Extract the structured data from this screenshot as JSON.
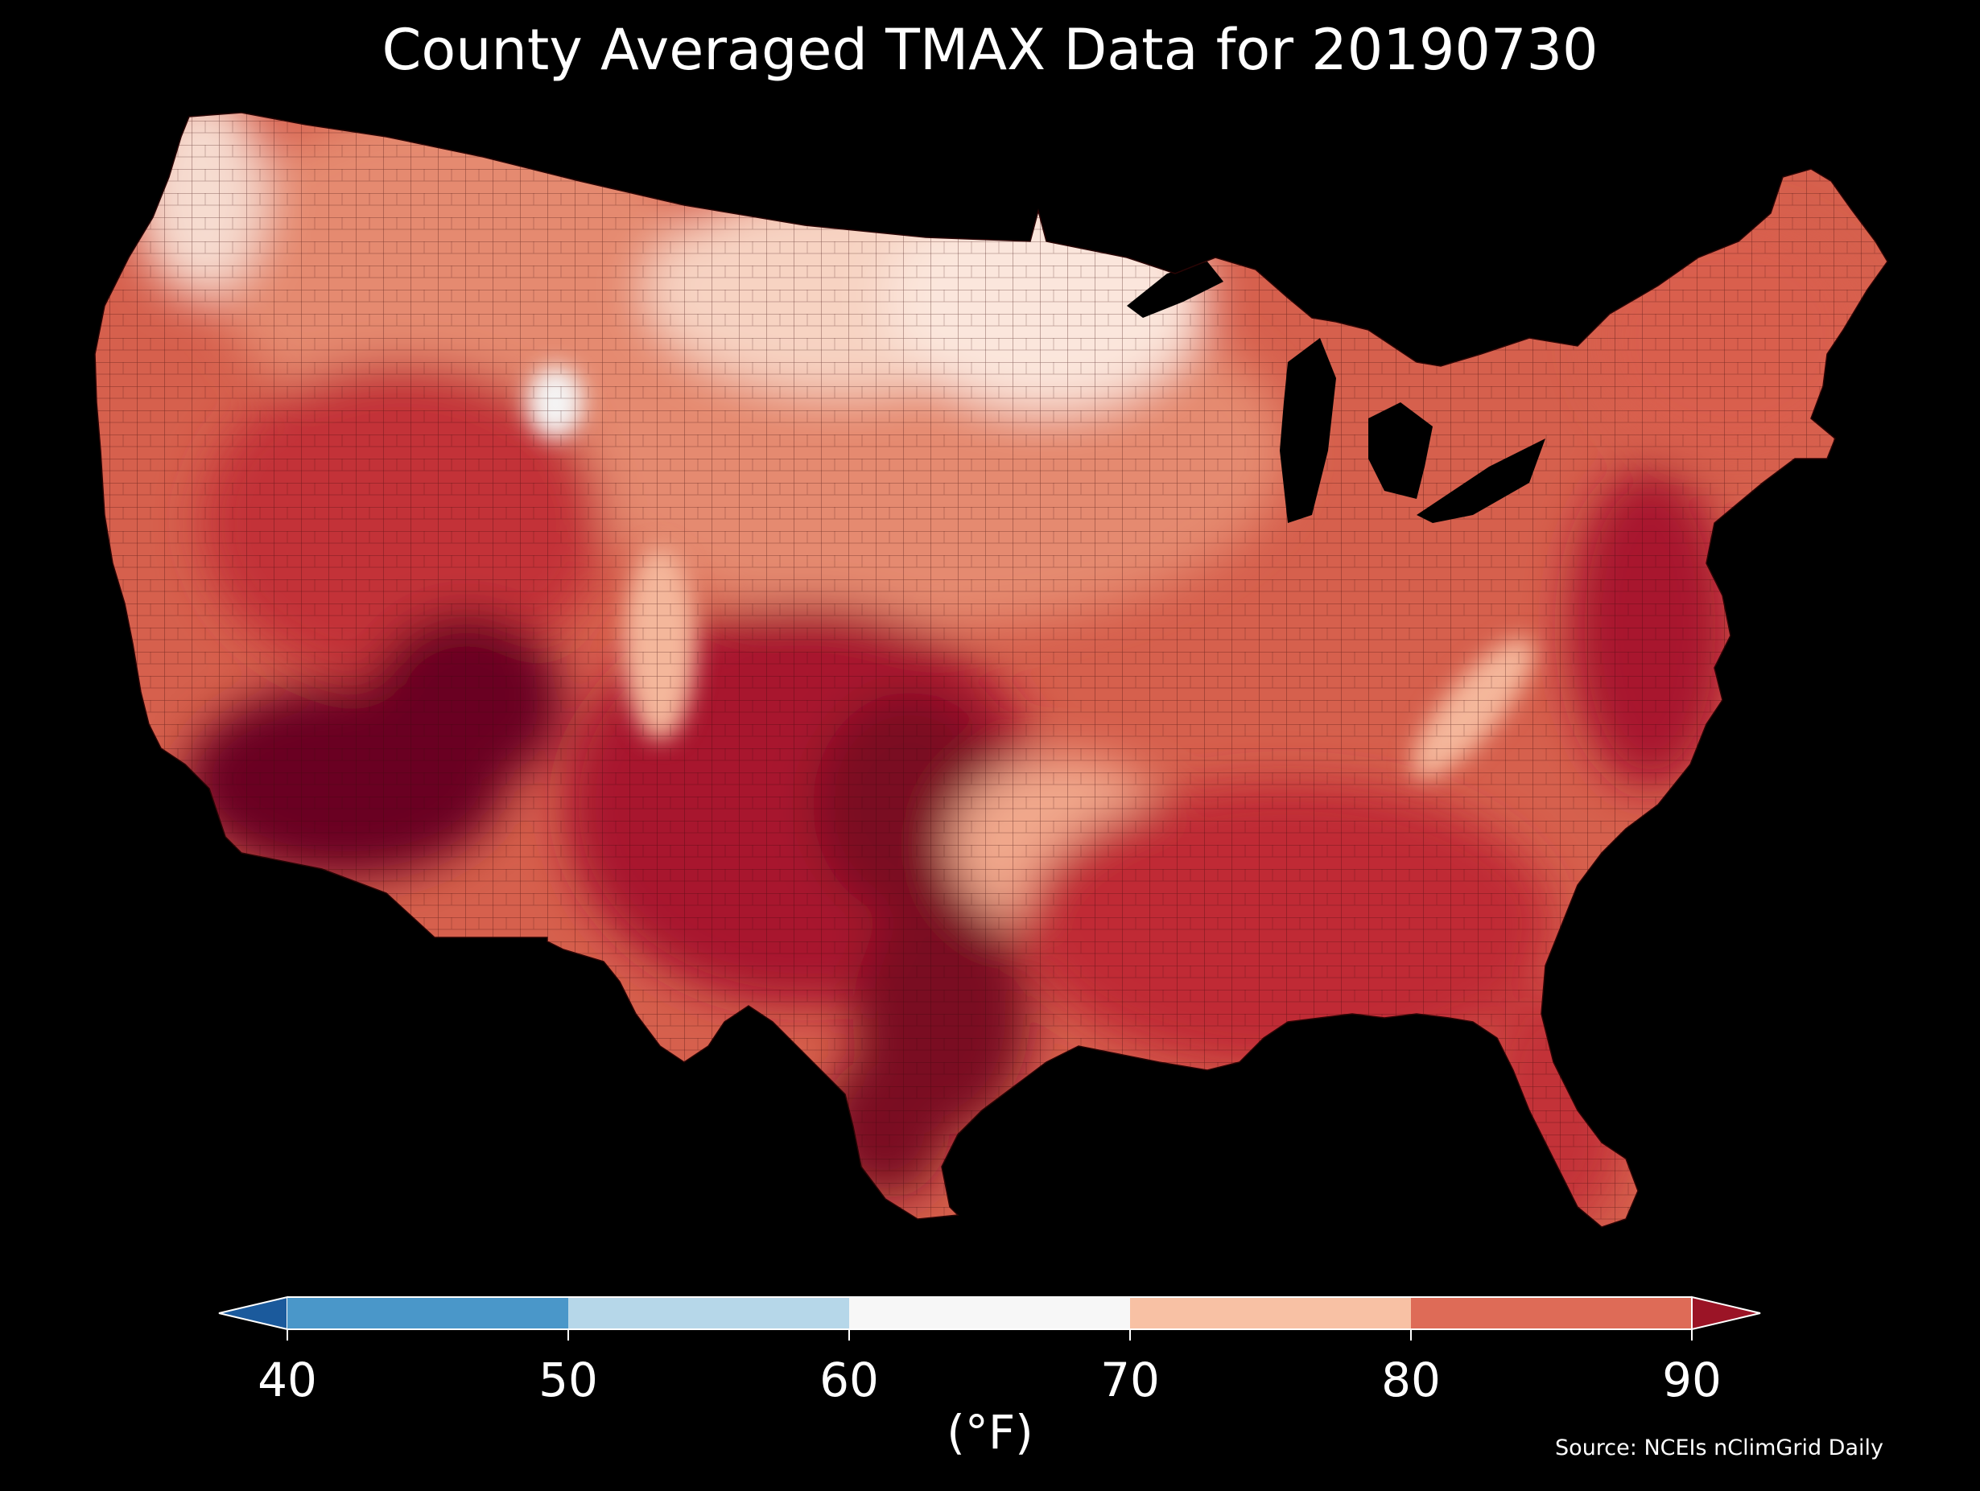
{
  "title": "County Averaged TMAX Data for 20190730",
  "colorbar": {
    "units_label": "(°F)",
    "extend_low_color": "#1b5a9c",
    "extend_high_color": "#9b1426",
    "segments": [
      {
        "from": 40,
        "to": 50,
        "color": "#4a97c9"
      },
      {
        "from": 50,
        "to": 60,
        "color": "#b6d7e9"
      },
      {
        "from": 60,
        "to": 70,
        "color": "#f7f7f7"
      },
      {
        "from": 70,
        "to": 80,
        "color": "#f8c1a4"
      },
      {
        "from": 80,
        "to": 90,
        "color": "#de6b57"
      }
    ],
    "ticks": [
      "40",
      "50",
      "60",
      "70",
      "80",
      "90"
    ]
  },
  "source": "Source: NCEIs nClimGrid Daily",
  "map": {
    "background_color": "#000000",
    "land_base_color": "#d6604d",
    "county_line_color": "#3a0a0a",
    "regions": {
      "pacific_northwest_coast": "#f6dcd0",
      "northern_rockies": "#e58a70",
      "yellowstone": "#f4f4f4",
      "great_basin": "#c33038",
      "desert_southwest": "#6a0020",
      "northern_plains": "#f7d3c2",
      "upper_midwest": "#fbe6dc",
      "central_plains": "#e58a70",
      "southern_plains": "#a8182e",
      "texas_hotspot": "#7a0a22",
      "ozarks": "#f1a88c",
      "southeast": "#c02a36",
      "appalachians": "#f4b79b",
      "mid_atlantic": "#a8182e",
      "northeast": "#d95e4d",
      "florida": "#c33038",
      "great_lakes_water": "#000000"
    }
  }
}
